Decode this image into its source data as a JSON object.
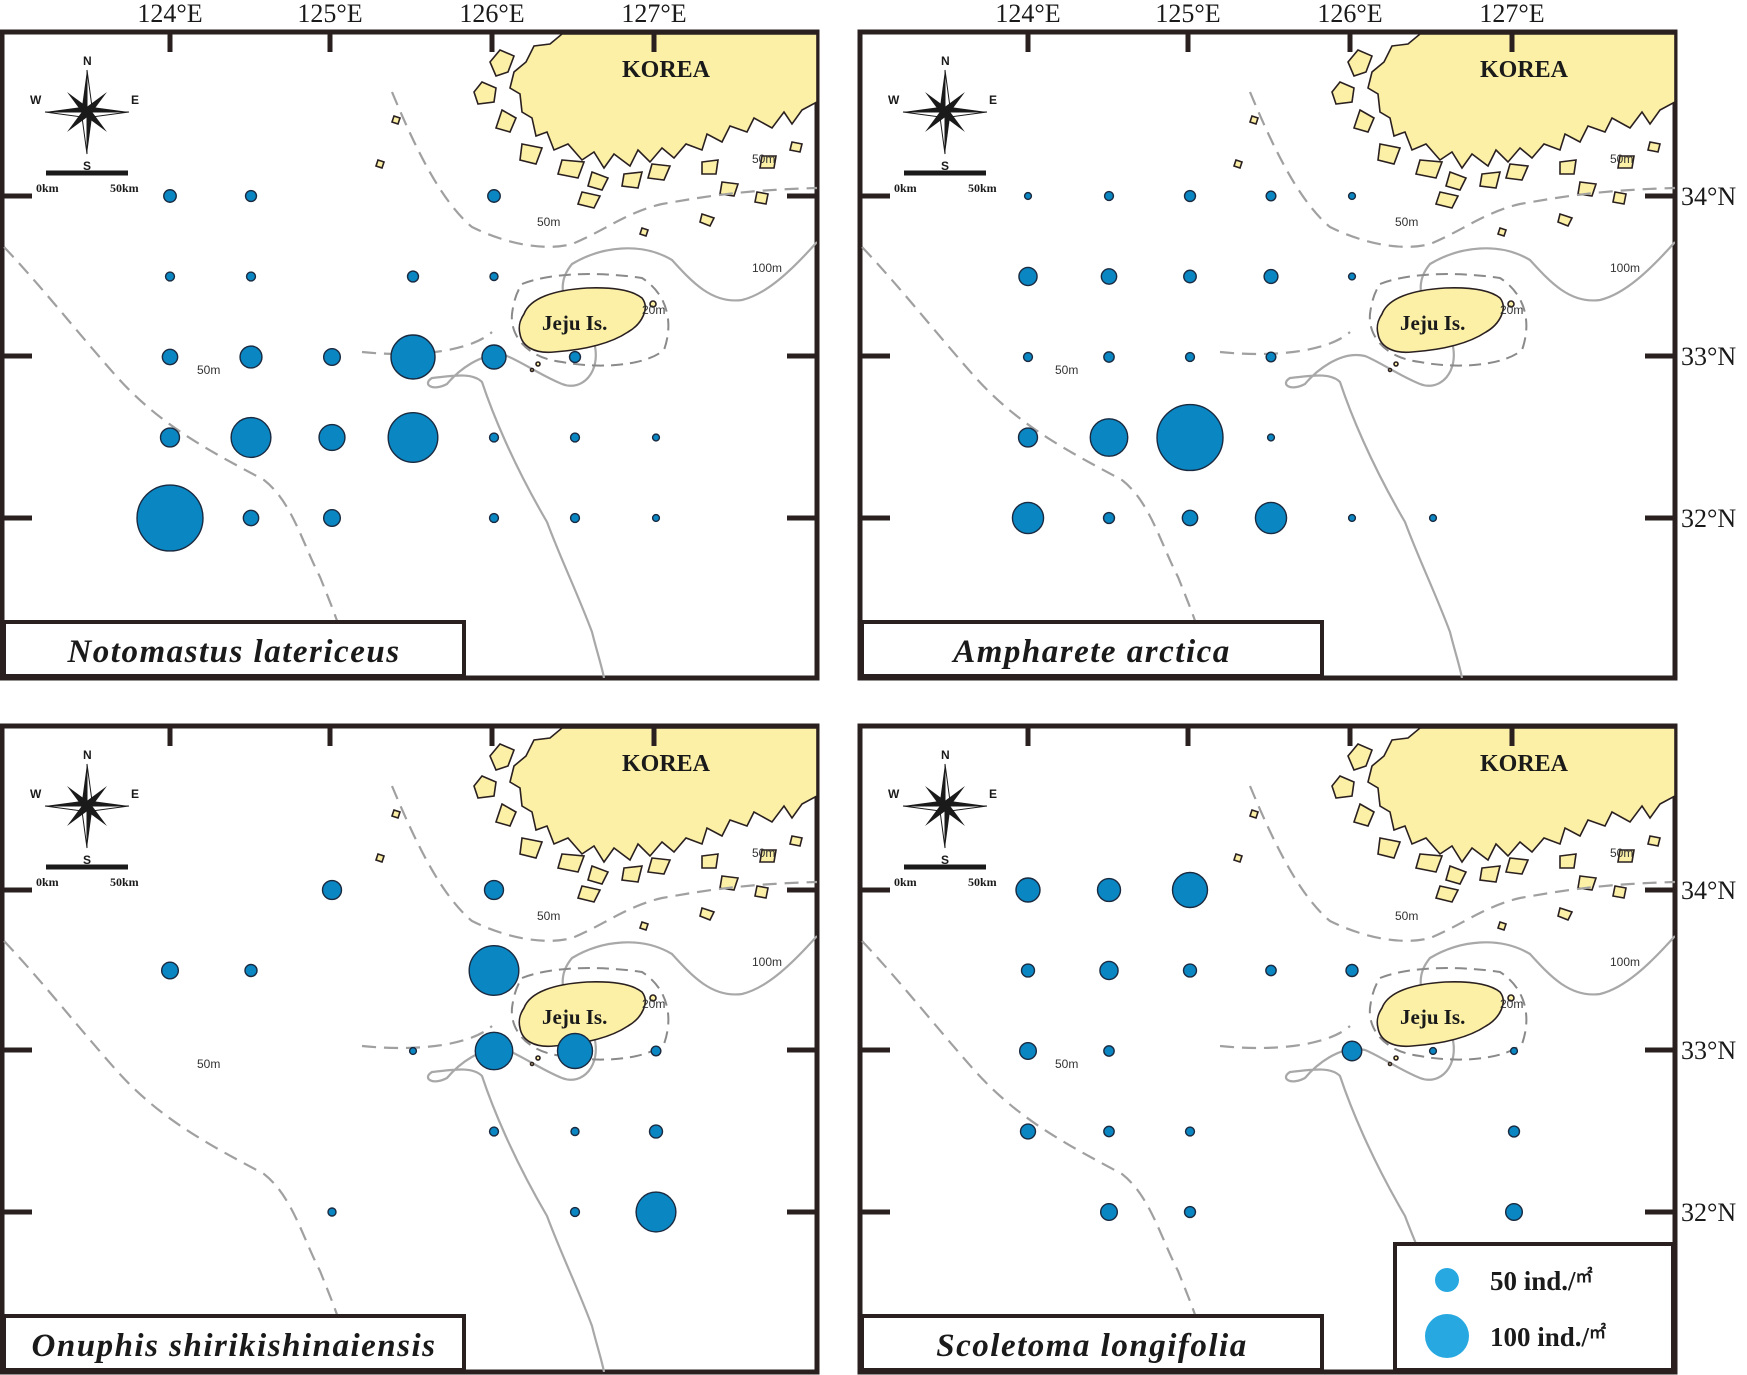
{
  "map": {
    "longitude_labels": [
      "124°E",
      "125°E",
      "126°E",
      "127°E"
    ],
    "latitude_labels": [
      "34°N",
      "33°N",
      "32°N"
    ],
    "places": {
      "korea": "KOREA",
      "jeju": "Jeju Is."
    },
    "depth_labels": {
      "d50": "50m",
      "d100": "100m",
      "d20": "20m"
    },
    "compass": {
      "n": "N",
      "s": "S",
      "e": "E",
      "w": "W"
    },
    "scale": {
      "zero": "0km",
      "end": "50km"
    },
    "colors": {
      "station": "#0a86c2",
      "land": "#fbf0a6",
      "legend_dot": "#27a8e0"
    }
  },
  "panels": [
    {
      "species": "Notomastus latericeus",
      "stations": [
        {
          "lon": 124.0,
          "lat": 34.0,
          "value": 9
        },
        {
          "lon": 124.5,
          "lat": 34.0,
          "value": 6
        },
        {
          "lon": 126.0,
          "lat": 34.0,
          "value": 9
        },
        {
          "lon": 124.0,
          "lat": 33.5,
          "value": 3
        },
        {
          "lon": 124.5,
          "lat": 33.5,
          "value": 3
        },
        {
          "lon": 125.5,
          "lat": 33.5,
          "value": 6
        },
        {
          "lon": 126.0,
          "lat": 33.5,
          "value": 2
        },
        {
          "lon": 124.0,
          "lat": 33.0,
          "value": 16
        },
        {
          "lon": 124.5,
          "lat": 33.0,
          "value": 40
        },
        {
          "lon": 125.0,
          "lat": 33.0,
          "value": 20
        },
        {
          "lon": 125.5,
          "lat": 33.0,
          "value": 200
        },
        {
          "lon": 126.0,
          "lat": 33.0,
          "value": 50
        },
        {
          "lon": 126.5,
          "lat": 33.0,
          "value": 6
        },
        {
          "lon": 124.0,
          "lat": 32.5,
          "value": 28
        },
        {
          "lon": 124.5,
          "lat": 32.5,
          "value": 160
        },
        {
          "lon": 125.0,
          "lat": 32.5,
          "value": 60
        },
        {
          "lon": 125.5,
          "lat": 32.5,
          "value": 260
        },
        {
          "lon": 126.0,
          "lat": 32.5,
          "value": 3
        },
        {
          "lon": 126.5,
          "lat": 32.5,
          "value": 3
        },
        {
          "lon": 127.0,
          "lat": 32.5,
          "value": 1
        },
        {
          "lon": 124.0,
          "lat": 32.0,
          "value": 480
        },
        {
          "lon": 124.5,
          "lat": 32.0,
          "value": 16
        },
        {
          "lon": 125.0,
          "lat": 32.0,
          "value": 20
        },
        {
          "lon": 126.0,
          "lat": 32.0,
          "value": 3
        },
        {
          "lon": 126.5,
          "lat": 32.0,
          "value": 3
        },
        {
          "lon": 127.0,
          "lat": 32.0,
          "value": 1
        }
      ]
    },
    {
      "species": "Ampharete arctica",
      "stations": [
        {
          "lon": 124.0,
          "lat": 34.0,
          "value": 1
        },
        {
          "lon": 124.5,
          "lat": 34.0,
          "value": 3
        },
        {
          "lon": 125.0,
          "lat": 34.0,
          "value": 6
        },
        {
          "lon": 125.5,
          "lat": 34.0,
          "value": 4
        },
        {
          "lon": 126.0,
          "lat": 34.0,
          "value": 1
        },
        {
          "lon": 124.0,
          "lat": 33.5,
          "value": 25
        },
        {
          "lon": 124.5,
          "lat": 33.5,
          "value": 16
        },
        {
          "lon": 125.0,
          "lat": 33.5,
          "value": 9
        },
        {
          "lon": 125.5,
          "lat": 33.5,
          "value": 12
        },
        {
          "lon": 126.0,
          "lat": 33.5,
          "value": 1
        },
        {
          "lon": 124.0,
          "lat": 33.0,
          "value": 3
        },
        {
          "lon": 124.5,
          "lat": 33.0,
          "value": 5
        },
        {
          "lon": 125.0,
          "lat": 33.0,
          "value": 3
        },
        {
          "lon": 125.5,
          "lat": 33.0,
          "value": 4
        },
        {
          "lon": 124.0,
          "lat": 32.5,
          "value": 28
        },
        {
          "lon": 124.5,
          "lat": 32.5,
          "value": 140
        },
        {
          "lon": 125.0,
          "lat": 32.5,
          "value": 480
        },
        {
          "lon": 125.5,
          "lat": 32.5,
          "value": 1
        },
        {
          "lon": 124.0,
          "lat": 32.0,
          "value": 92
        },
        {
          "lon": 124.5,
          "lat": 32.0,
          "value": 6
        },
        {
          "lon": 125.0,
          "lat": 32.0,
          "value": 16
        },
        {
          "lon": 125.5,
          "lat": 32.0,
          "value": 92
        },
        {
          "lon": 126.0,
          "lat": 32.0,
          "value": 1
        },
        {
          "lon": 126.5,
          "lat": 32.0,
          "value": 1
        }
      ]
    },
    {
      "species": "Onuphis shirikishinaiensis",
      "stations": [
        {
          "lon": 125.0,
          "lat": 34.0,
          "value": 28
        },
        {
          "lon": 126.0,
          "lat": 34.0,
          "value": 28
        },
        {
          "lon": 124.0,
          "lat": 33.5,
          "value": 20
        },
        {
          "lon": 124.5,
          "lat": 33.5,
          "value": 8
        },
        {
          "lon": 126.0,
          "lat": 33.5,
          "value": 260
        },
        {
          "lon": 125.5,
          "lat": 33.0,
          "value": 1
        },
        {
          "lon": 126.0,
          "lat": 33.0,
          "value": 140
        },
        {
          "lon": 126.5,
          "lat": 33.0,
          "value": 120
        },
        {
          "lon": 127.0,
          "lat": 33.0,
          "value": 4
        },
        {
          "lon": 126.0,
          "lat": 32.5,
          "value": 3
        },
        {
          "lon": 126.5,
          "lat": 32.5,
          "value": 2
        },
        {
          "lon": 127.0,
          "lat": 32.5,
          "value": 10
        },
        {
          "lon": 125.0,
          "lat": 32.0,
          "value": 2
        },
        {
          "lon": 126.5,
          "lat": 32.0,
          "value": 3
        },
        {
          "lon": 127.0,
          "lat": 32.0,
          "value": 160
        }
      ]
    },
    {
      "species": "Scoletoma longifolia",
      "stations": [
        {
          "lon": 124.0,
          "lat": 34.0,
          "value": 50
        },
        {
          "lon": 124.5,
          "lat": 34.0,
          "value": 45
        },
        {
          "lon": 125.0,
          "lat": 34.0,
          "value": 120
        },
        {
          "lon": 124.0,
          "lat": 33.5,
          "value": 10
        },
        {
          "lon": 124.5,
          "lat": 33.5,
          "value": 25
        },
        {
          "lon": 125.0,
          "lat": 33.5,
          "value": 10
        },
        {
          "lon": 125.5,
          "lat": 33.5,
          "value": 5
        },
        {
          "lon": 126.0,
          "lat": 33.5,
          "value": 8
        },
        {
          "lon": 124.0,
          "lat": 33.0,
          "value": 20
        },
        {
          "lon": 124.5,
          "lat": 33.0,
          "value": 5
        },
        {
          "lon": 126.0,
          "lat": 33.0,
          "value": 30
        },
        {
          "lon": 126.5,
          "lat": 33.0,
          "value": 1
        },
        {
          "lon": 127.0,
          "lat": 33.0,
          "value": 1
        },
        {
          "lon": 124.0,
          "lat": 32.5,
          "value": 15
        },
        {
          "lon": 124.5,
          "lat": 32.5,
          "value": 5
        },
        {
          "lon": 125.0,
          "lat": 32.5,
          "value": 3
        },
        {
          "lon": 127.0,
          "lat": 32.5,
          "value": 6
        },
        {
          "lon": 124.5,
          "lat": 32.0,
          "value": 20
        },
        {
          "lon": 125.0,
          "lat": 32.0,
          "value": 6
        },
        {
          "lon": 127.0,
          "lat": 32.0,
          "value": 20
        }
      ]
    }
  ],
  "legend": {
    "items": [
      {
        "value": 50,
        "label": "50 ind./",
        "unit": "㎡"
      },
      {
        "value": 100,
        "label": "100 ind./",
        "unit": "㎡"
      }
    ]
  }
}
